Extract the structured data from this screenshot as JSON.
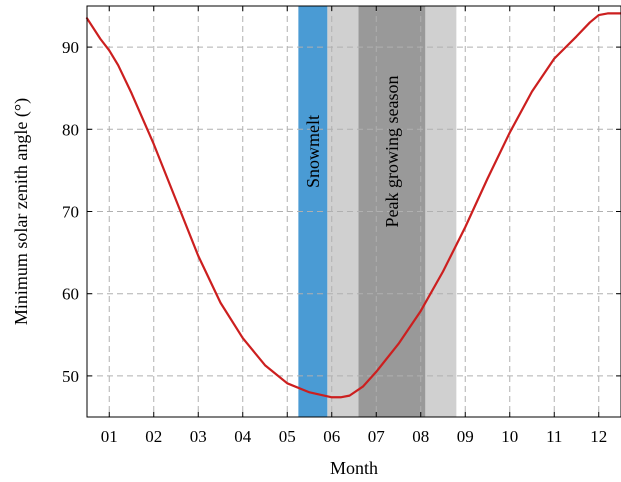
{
  "chart_data": {
    "type": "line",
    "xlabel": "Month",
    "ylabel": "Minimum solar zenith angle (°)",
    "xlim": [
      0.5,
      12.5
    ],
    "ylim": [
      45,
      95
    ],
    "x_ticks": [
      1,
      2,
      3,
      4,
      5,
      6,
      7,
      8,
      9,
      10,
      11,
      12
    ],
    "x_tick_labels": [
      "01",
      "02",
      "03",
      "04",
      "05",
      "06",
      "07",
      "08",
      "09",
      "10",
      "11",
      "12"
    ],
    "y_ticks": [
      50,
      60,
      70,
      80,
      90
    ],
    "y_tick_labels": [
      "50",
      "60",
      "70",
      "80",
      "90"
    ],
    "grid": true,
    "series": [
      {
        "color": "#cc1f1f",
        "x": [
          0.5,
          0.8,
          1.0,
          1.2,
          1.5,
          2.0,
          2.5,
          3.0,
          3.5,
          4.0,
          4.5,
          5.0,
          5.5,
          6.0,
          6.2,
          6.4,
          6.7,
          7.0,
          7.5,
          8.0,
          8.5,
          9.0,
          9.5,
          10.0,
          10.5,
          11.0,
          11.5,
          11.8,
          12.0,
          12.2,
          12.5
        ],
        "y": [
          93.5,
          91.0,
          89.6,
          87.8,
          84.4,
          78.2,
          71.4,
          64.6,
          58.9,
          54.6,
          51.3,
          49.1,
          48.0,
          47.4,
          47.4,
          47.6,
          48.7,
          50.5,
          53.9,
          57.9,
          62.7,
          68.1,
          74.0,
          79.6,
          84.6,
          88.6,
          91.3,
          93.0,
          93.9,
          94.1,
          94.1
        ]
      }
    ],
    "bands": [
      {
        "label": "",
        "color": "#d0d0d0",
        "x_start": 6.6,
        "x_end": 8.8
      },
      {
        "label": "Peak growing season",
        "color": "#999999",
        "x_start": 6.6,
        "x_end": 8.1
      },
      {
        "label": "",
        "color": "#d0d0d0",
        "x_start": 5.9,
        "x_end": 6.6
      },
      {
        "label": "Snowmelt",
        "color": "#4a9bd4",
        "x_start": 5.25,
        "x_end": 5.9
      }
    ]
  }
}
